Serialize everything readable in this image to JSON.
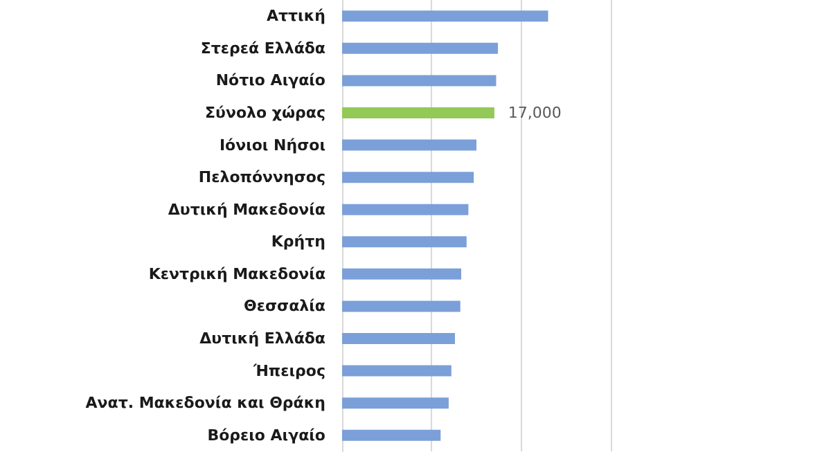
{
  "chart_data": {
    "type": "bar",
    "orientation": "horizontal",
    "categories": [
      "Αττική",
      "Στερεά Ελλάδα",
      "Νότιο Αιγαίο",
      "Σύνολο χώρας",
      "Ιόνιοι Νήσοι",
      "Πελοπόννησος",
      "Δυτική Μακεδονία",
      "Κρήτη",
      "Κεντρική Μακεδονία",
      "Θεσσαλία",
      "Δυτική Ελλάδα",
      "Ήπειρος",
      "Ανατ. Μακεδονία και Θράκη",
      "Βόρειο Αιγαίο"
    ],
    "values": [
      23000,
      17400,
      17200,
      17000,
      15000,
      14700,
      14100,
      13900,
      13300,
      13200,
      12600,
      12200,
      11900,
      11000
    ],
    "colors": [
      "#7b9fd8",
      "#7b9fd8",
      "#7b9fd8",
      "#92c957",
      "#7b9fd8",
      "#7b9fd8",
      "#7b9fd8",
      "#7b9fd8",
      "#7b9fd8",
      "#7b9fd8",
      "#7b9fd8",
      "#7b9fd8",
      "#7b9fd8",
      "#7b9fd8"
    ],
    "value_labels": [
      null,
      null,
      null,
      "17,000",
      null,
      null,
      null,
      null,
      null,
      null,
      null,
      null,
      null,
      null
    ],
    "xlim": [
      0,
      30000
    ],
    "xticks": [
      {
        "value": 0,
        "label": null
      },
      {
        "value": 10000,
        "label": null
      },
      {
        "value": 20000,
        "label": null
      },
      {
        "value": 30000,
        "label": null
      }
    ],
    "grid": "x",
    "tick_labels": "y"
  }
}
